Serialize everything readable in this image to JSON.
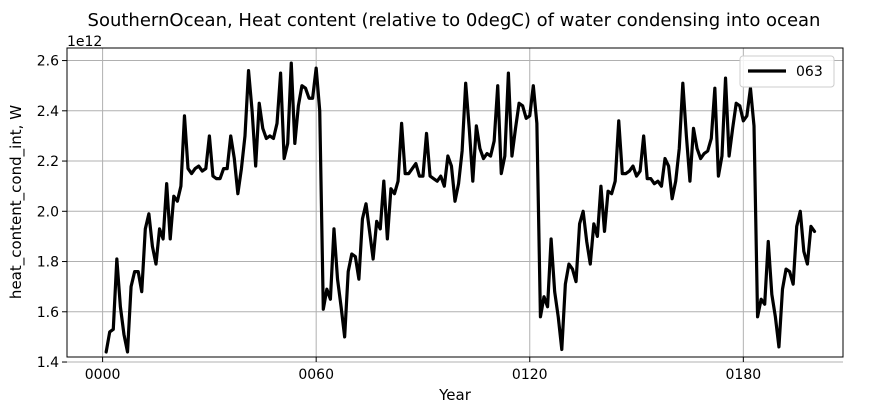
{
  "chart_data": {
    "type": "line",
    "title": "SouthernOcean, Heat content (relative to 0degC) of water condensing into ocean",
    "xlabel": "Year",
    "ylabel": "heat_content_cond_int, W",
    "offset_text": "1e12",
    "xlim": [
      -10,
      208
    ],
    "ylim": [
      1.42,
      2.65
    ],
    "x_ticks": [
      0,
      60,
      120,
      180
    ],
    "x_tick_labels": [
      "0000",
      "0060",
      "0120",
      "0180"
    ],
    "y_ticks": [
      1.4,
      1.6,
      1.8,
      2.0,
      2.2,
      2.4,
      2.6
    ],
    "y_tick_labels": [
      "1.4",
      "1.6",
      "1.8",
      "2.0",
      "2.2",
      "2.4",
      "2.6"
    ],
    "grid": true,
    "legend_position": "top-right",
    "series": [
      {
        "name": "063",
        "color": "#000000",
        "x": [
          1,
          2,
          3,
          4,
          5,
          6,
          7,
          8,
          9,
          10,
          11,
          12,
          13,
          14,
          15,
          16,
          17,
          18,
          19,
          20,
          21,
          22,
          23,
          24,
          25,
          26,
          27,
          28,
          29,
          30,
          31,
          32,
          33,
          34,
          35,
          36,
          37,
          38,
          39,
          40,
          41,
          42,
          43,
          44,
          45,
          46,
          47,
          48,
          49,
          50,
          51,
          52,
          53,
          54,
          55,
          56,
          57,
          58,
          59,
          60,
          61,
          62,
          63,
          64,
          65,
          66,
          67,
          68,
          69,
          70,
          71,
          72,
          73,
          74,
          75,
          76,
          77,
          78,
          79,
          80,
          81,
          82,
          83,
          84,
          85,
          86,
          87,
          88,
          89,
          90,
          91,
          92,
          93,
          94,
          95,
          96,
          97,
          98,
          99,
          100,
          101,
          102,
          103,
          104,
          105,
          106,
          107,
          108,
          109,
          110,
          111,
          112,
          113,
          114,
          115,
          116,
          117,
          118,
          119,
          120,
          121,
          122,
          123,
          124,
          125,
          126,
          127,
          128,
          129,
          130,
          131,
          132,
          133,
          134,
          135,
          136,
          137,
          138,
          139,
          140,
          141,
          142,
          143,
          144,
          145,
          146,
          147,
          148,
          149,
          150,
          151,
          152,
          153,
          154,
          155,
          156,
          157,
          158,
          159,
          160,
          161,
          162,
          163,
          164,
          165,
          166,
          167,
          168,
          169,
          170,
          171,
          172,
          173,
          174,
          175,
          176,
          177,
          178,
          179,
          180,
          181,
          182,
          183,
          184,
          185,
          186,
          187,
          188,
          189,
          190,
          191,
          192,
          193,
          194,
          195,
          196,
          197,
          198,
          199,
          200
        ],
        "values": [
          1.44,
          1.52,
          1.53,
          1.81,
          1.62,
          1.51,
          1.44,
          1.7,
          1.76,
          1.76,
          1.68,
          1.93,
          1.99,
          1.86,
          1.79,
          1.93,
          1.89,
          2.11,
          1.89,
          2.06,
          2.04,
          2.1,
          2.38,
          2.17,
          2.15,
          2.17,
          2.18,
          2.16,
          2.17,
          2.3,
          2.14,
          2.13,
          2.13,
          2.17,
          2.17,
          2.3,
          2.21,
          2.07,
          2.17,
          2.3,
          2.56,
          2.4,
          2.18,
          2.43,
          2.33,
          2.29,
          2.3,
          2.29,
          2.35,
          2.55,
          2.21,
          2.27,
          2.59,
          2.27,
          2.42,
          2.5,
          2.49,
          2.45,
          2.45,
          2.57,
          2.4,
          1.61,
          1.69,
          1.65,
          1.93,
          1.73,
          1.62,
          1.5,
          1.76,
          1.83,
          1.82,
          1.73,
          1.97,
          2.03,
          1.92,
          1.81,
          1.96,
          1.93,
          2.12,
          1.89,
          2.09,
          2.07,
          2.12,
          2.35,
          2.15,
          2.15,
          2.17,
          2.19,
          2.14,
          2.14,
          2.31,
          2.14,
          2.13,
          2.12,
          2.14,
          2.1,
          2.22,
          2.18,
          2.04,
          2.11,
          2.24,
          2.51,
          2.33,
          2.12,
          2.34,
          2.25,
          2.21,
          2.23,
          2.22,
          2.28,
          2.5,
          2.15,
          2.22,
          2.55,
          2.22,
          2.33,
          2.43,
          2.42,
          2.37,
          2.38,
          2.5,
          2.35,
          1.58,
          1.66,
          1.62,
          1.89,
          1.68,
          1.58,
          1.45,
          1.71,
          1.79,
          1.77,
          1.72,
          1.95,
          2.0,
          1.88,
          1.79,
          1.95,
          1.9,
          2.1,
          1.92,
          2.08,
          2.07,
          2.12,
          2.36,
          2.15,
          2.15,
          2.16,
          2.18,
          2.14,
          2.16,
          2.3,
          2.13,
          2.13,
          2.11,
          2.12,
          2.1,
          2.21,
          2.18,
          2.05,
          2.12,
          2.25,
          2.51,
          2.3,
          2.12,
          2.33,
          2.25,
          2.21,
          2.23,
          2.24,
          2.29,
          2.49,
          2.14,
          2.22,
          2.53,
          2.22,
          2.33,
          2.43,
          2.42,
          2.36,
          2.38,
          2.49,
          2.34,
          1.58,
          1.65,
          1.63,
          1.88,
          1.67,
          1.58,
          1.46,
          1.69,
          1.77,
          1.76,
          1.71,
          1.94,
          2.0,
          1.84,
          1.79,
          1.94,
          1.92
        ]
      }
    ]
  }
}
